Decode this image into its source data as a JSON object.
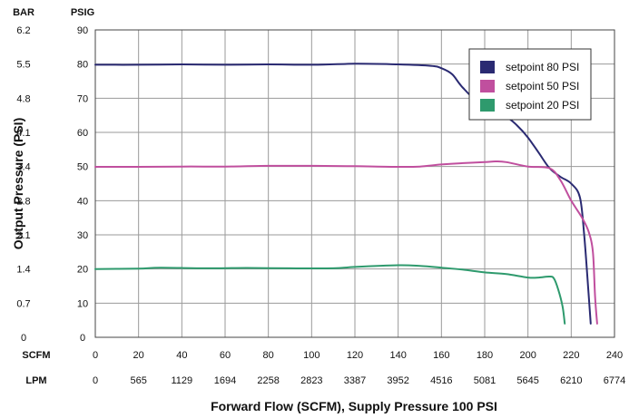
{
  "chart_data": {
    "type": "line",
    "title": "",
    "xlabel": "Forward Flow (SCFM), Supply Pressure 100 PSI",
    "ylabel": "Output Pressure (PSI)",
    "xlim": [
      0,
      240
    ],
    "ylim": [
      0,
      90
    ],
    "grid": true,
    "legend_position": "top-right",
    "x_axis_primary_label": "SCFM",
    "x_axis_secondary_label": "LPM",
    "y_axis_left_label": "BAR",
    "y_axis_right_label": "PSIG",
    "x_ticks": [
      "0",
      "20",
      "40",
      "60",
      "80",
      "100",
      "120",
      "140",
      "160",
      "180",
      "200",
      "220",
      "240"
    ],
    "x_ticks_lpm": [
      "0",
      "565",
      "1129",
      "1694",
      "2258",
      "2823",
      "3387",
      "3952",
      "4516",
      "5081",
      "5645",
      "6210",
      "6774"
    ],
    "y_ticks_psig": [
      "0",
      "10",
      "20",
      "30",
      "40",
      "50",
      "60",
      "70",
      "80",
      "90"
    ],
    "y_ticks_bar": [
      "0",
      "0.7",
      "1.4",
      "2.1",
      "2.8",
      "3.4",
      "4.1",
      "4.8",
      "5.5",
      "6.2"
    ],
    "series": [
      {
        "name": "setpoint 80 PSI",
        "color": "#2a2a72",
        "points": [
          [
            0,
            79.8
          ],
          [
            20,
            79.8
          ],
          [
            40,
            79.9
          ],
          [
            60,
            79.8
          ],
          [
            80,
            79.9
          ],
          [
            100,
            79.8
          ],
          [
            120,
            80.1
          ],
          [
            140,
            79.9
          ],
          [
            155,
            79.5
          ],
          [
            160,
            78.8
          ],
          [
            165,
            77
          ],
          [
            170,
            73
          ],
          [
            180,
            67
          ],
          [
            190,
            64.5
          ],
          [
            195,
            62
          ],
          [
            200,
            58.5
          ],
          [
            205,
            54
          ],
          [
            210,
            49.5
          ],
          [
            215,
            47
          ],
          [
            220,
            45
          ],
          [
            224,
            41
          ],
          [
            226,
            30
          ],
          [
            228,
            13
          ],
          [
            229,
            4
          ]
        ]
      },
      {
        "name": "setpoint 50 PSI",
        "color": "#c04f9e",
        "points": [
          [
            0,
            49.9
          ],
          [
            20,
            49.9
          ],
          [
            40,
            50
          ],
          [
            60,
            50
          ],
          [
            80,
            50.2
          ],
          [
            100,
            50.2
          ],
          [
            120,
            50.1
          ],
          [
            140,
            49.9
          ],
          [
            150,
            50
          ],
          [
            160,
            50.6
          ],
          [
            170,
            51
          ],
          [
            180,
            51.3
          ],
          [
            185,
            51.5
          ],
          [
            190,
            51.3
          ],
          [
            200,
            50
          ],
          [
            210,
            49.5
          ],
          [
            215,
            46
          ],
          [
            220,
            40
          ],
          [
            225,
            35
          ],
          [
            228,
            31
          ],
          [
            230,
            25
          ],
          [
            231,
            12
          ],
          [
            232,
            4
          ]
        ]
      },
      {
        "name": "setpoint 20 PSI",
        "color": "#2e9a6d",
        "points": [
          [
            0,
            20
          ],
          [
            20,
            20.1
          ],
          [
            30,
            20.4
          ],
          [
            50,
            20.2
          ],
          [
            70,
            20.3
          ],
          [
            90,
            20.2
          ],
          [
            110,
            20.2
          ],
          [
            120,
            20.6
          ],
          [
            140,
            21.1
          ],
          [
            150,
            20.9
          ],
          [
            160,
            20.4
          ],
          [
            170,
            19.8
          ],
          [
            180,
            19
          ],
          [
            190,
            18.5
          ],
          [
            200,
            17.5
          ],
          [
            205,
            17.5
          ],
          [
            210,
            17.8
          ],
          [
            212,
            17.2
          ],
          [
            214,
            14
          ],
          [
            216,
            9
          ],
          [
            217,
            4
          ]
        ]
      }
    ]
  }
}
